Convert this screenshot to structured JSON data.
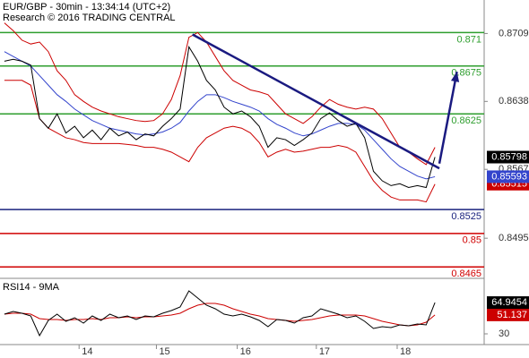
{
  "chart_data": [
    {
      "type": "line",
      "title": "EUR/GBP - 30min - 13:34:14 (UTC+2)",
      "subtitle": "Research © 2016 TRADING CENTRAL",
      "xlim": [
        -0.5,
        54.6
      ],
      "ylim": [
        0.8454,
        0.8744
      ],
      "xticks": [
        {
          "value": 8.5,
          "label": "14"
        },
        {
          "value": 17.3,
          "label": "15"
        },
        {
          "value": 26.5,
          "label": "16"
        },
        {
          "value": 35.5,
          "label": "17"
        },
        {
          "value": 44.7,
          "label": "18"
        }
      ],
      "yticks": [
        0.8709,
        0.8638,
        0.8567,
        0.8495
      ],
      "levels": [
        {
          "value": 0.871,
          "color": "#2e9e2e"
        },
        {
          "value": 0.8675,
          "color": "#2e9e2e"
        },
        {
          "value": 0.8625,
          "color": "#2e9e2e"
        },
        {
          "value": 0.8525,
          "color": "#1a237e"
        },
        {
          "value": 0.85,
          "color": "#d00000"
        },
        {
          "value": 0.8465,
          "color": "#d00000"
        }
      ],
      "trendline": {
        "x": [
          21.4,
          49.5
        ],
        "y": [
          0.8708,
          0.8568
        ],
        "color": "#1a1a80"
      },
      "arrow": {
        "x": [
          49.5,
          51.5
        ],
        "y": [
          0.8573,
          0.8669
        ],
        "color": "#1a1a80"
      },
      "series": [
        {
          "color": "#cc0000",
          "values": [
            0.872,
            0.8712,
            0.8702,
            0.8698,
            0.87,
            0.869,
            0.867,
            0.866,
            0.8645,
            0.8638,
            0.8632,
            0.8628,
            0.8625,
            0.8622,
            0.862,
            0.8618,
            0.8617,
            0.8618,
            0.8625,
            0.864,
            0.8665,
            0.8705,
            0.871,
            0.87,
            0.8685,
            0.867,
            0.866,
            0.8655,
            0.865,
            0.8648,
            0.8645,
            0.8635,
            0.8625,
            0.862,
            0.8615,
            0.8622,
            0.8632,
            0.864,
            0.8635,
            0.8632,
            0.863,
            0.8632,
            0.863,
            0.862,
            0.8605,
            0.859,
            0.8585,
            0.8578,
            0.8572,
            0.859
          ]
        },
        {
          "color": "#cc0000",
          "tag": true,
          "values": [
            0.866,
            0.866,
            0.866,
            0.8655,
            0.862,
            0.861,
            0.8605,
            0.86,
            0.8598,
            0.8595,
            0.8594,
            0.8594,
            0.8594,
            0.8594,
            0.8593,
            0.8592,
            0.859,
            0.859,
            0.8588,
            0.8585,
            0.858,
            0.8575,
            0.859,
            0.86,
            0.8605,
            0.861,
            0.8612,
            0.861,
            0.8605,
            0.8595,
            0.858,
            0.8585,
            0.8588,
            0.8585,
            0.8586,
            0.8588,
            0.859,
            0.859,
            0.8592,
            0.859,
            0.8585,
            0.857,
            0.8555,
            0.8545,
            0.8538,
            0.8535,
            0.8535,
            0.8535,
            0.8533,
            0.85515
          ]
        },
        {
          "color": "#3344cc",
          "tag": true,
          "values": [
            0.869,
            0.8685,
            0.868,
            0.8675,
            0.8665,
            0.8655,
            0.8645,
            0.8638,
            0.863,
            0.8624,
            0.8618,
            0.8614,
            0.861,
            0.8608,
            0.8606,
            0.8604,
            0.8603,
            0.8604,
            0.8606,
            0.861,
            0.8616,
            0.8628,
            0.8638,
            0.8645,
            0.8645,
            0.8642,
            0.8638,
            0.8635,
            0.8632,
            0.8628,
            0.862,
            0.8614,
            0.861,
            0.8605,
            0.8602,
            0.8604,
            0.8608,
            0.8612,
            0.8615,
            0.8615,
            0.8614,
            0.8608,
            0.8598,
            0.8588,
            0.8578,
            0.857,
            0.8565,
            0.856,
            0.8557,
            0.85593
          ]
        },
        {
          "color": "#000000",
          "tag": true,
          "values": [
            0.868,
            0.8682,
            0.868,
            0.8676,
            0.862,
            0.861,
            0.8625,
            0.8605,
            0.8612,
            0.86,
            0.8608,
            0.8598,
            0.861,
            0.8602,
            0.8606,
            0.8598,
            0.8604,
            0.8602,
            0.8612,
            0.862,
            0.863,
            0.8695,
            0.868,
            0.866,
            0.865,
            0.8632,
            0.8625,
            0.8628,
            0.8622,
            0.8612,
            0.859,
            0.86,
            0.8598,
            0.8592,
            0.8598,
            0.8605,
            0.862,
            0.8626,
            0.8618,
            0.8612,
            0.8615,
            0.86,
            0.8565,
            0.8555,
            0.855,
            0.8552,
            0.8548,
            0.855,
            0.8548,
            0.85798
          ]
        }
      ]
    },
    {
      "type": "line",
      "title": "RSI14 - 9MA",
      "xlim": [
        -0.5,
        54.6
      ],
      "ylim": [
        18,
        90
      ],
      "yticks": [
        30
      ],
      "series": [
        {
          "color": "#cc0000",
          "tag": true,
          "values": [
            52,
            53,
            53,
            52,
            47,
            46,
            46,
            45,
            46,
            46,
            47,
            46,
            48,
            48,
            49,
            48,
            49,
            49,
            50,
            51,
            53,
            58,
            62,
            64,
            64,
            62,
            58,
            55,
            52,
            50,
            47,
            46,
            45,
            44,
            45,
            46,
            48,
            50,
            51,
            51,
            51,
            50,
            47,
            44,
            42,
            40,
            39,
            40,
            43,
            51.137
          ]
        },
        {
          "color": "#000000",
          "tag": true,
          "values": [
            52,
            55,
            53,
            50,
            28,
            45,
            52,
            44,
            48,
            42,
            50,
            45,
            52,
            48,
            50,
            46,
            50,
            49,
            53,
            56,
            60,
            78,
            70,
            62,
            58,
            52,
            50,
            52,
            49,
            45,
            38,
            46,
            45,
            42,
            48,
            50,
            58,
            55,
            52,
            48,
            50,
            44,
            36,
            38,
            37,
            40,
            39,
            41,
            40,
            64.9454
          ]
        }
      ]
    }
  ]
}
